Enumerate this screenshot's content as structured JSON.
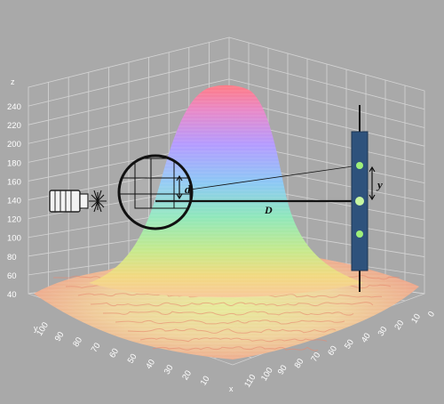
{
  "z_axis": {
    "label": "z",
    "ticks": [
      "40",
      "60",
      "80",
      "100",
      "120",
      "140",
      "160",
      "180",
      "200",
      "220",
      "240"
    ]
  },
  "y_axis": {
    "label": "y",
    "ticks": [
      "100",
      "90",
      "80",
      "70",
      "60",
      "50",
      "40",
      "30",
      "20",
      "10"
    ]
  },
  "x_axis": {
    "label": "x",
    "ticks": [
      "110",
      "100",
      "90",
      "80",
      "70",
      "60",
      "50",
      "40",
      "30",
      "20",
      "10",
      "0"
    ]
  },
  "annotations": {
    "inset_size": "d",
    "distance": "D",
    "offset": "y"
  },
  "colors": {
    "background": "#a9a9a9",
    "grid": "#dcdcdc",
    "detector_bar": "#2e527c",
    "spot": "#9ff07a"
  }
}
